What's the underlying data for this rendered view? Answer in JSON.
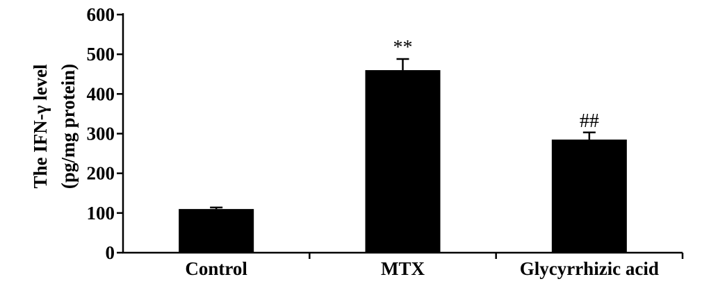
{
  "chart_data": {
    "type": "bar",
    "categories": [
      "Control",
      "MTX",
      "Glycyrrhizic acid"
    ],
    "values": [
      110,
      460,
      285
    ],
    "errors": [
      4,
      28,
      18
    ],
    "annotations": [
      "",
      "**",
      "##"
    ],
    "ylabel_line1": "The IFN-γ level",
    "ylabel_line2": "(pg/mg protein)",
    "xlabel": "",
    "ylim": [
      0,
      600
    ],
    "yticks": [
      0,
      100,
      200,
      300,
      400,
      500,
      600
    ],
    "bar_color": "#000000",
    "grid": false
  }
}
